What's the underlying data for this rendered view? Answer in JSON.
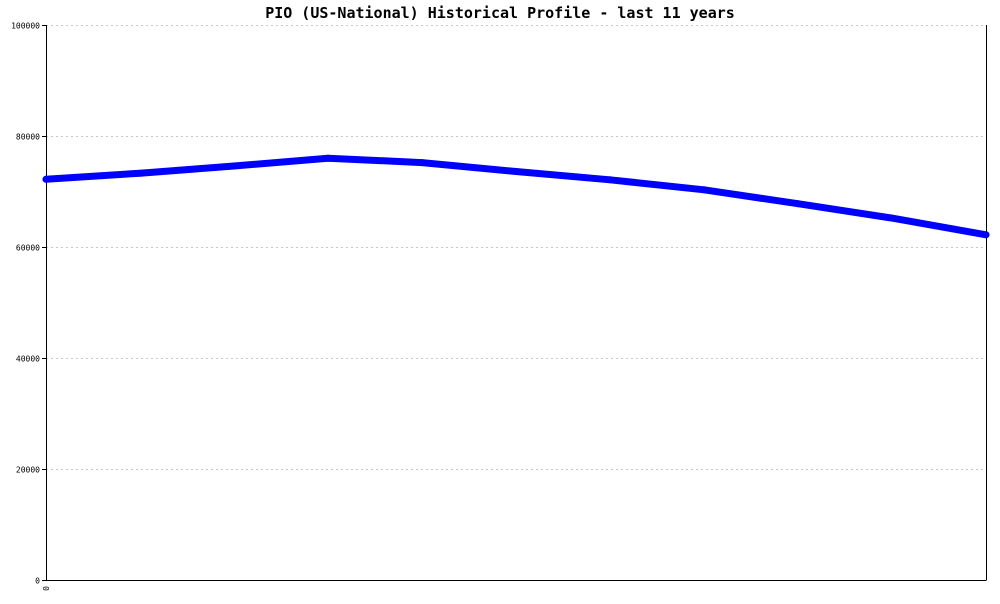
{
  "chart_data": {
    "type": "line",
    "title": "PIO (US-National) Historical Profile - last 11 years",
    "xlabel": "",
    "ylabel": "",
    "ylim": [
      0,
      100000
    ],
    "y_ticks": [
      0,
      20000,
      40000,
      60000,
      80000,
      100000
    ],
    "y_tick_labels": [
      "0",
      "20000",
      "40000",
      "60000",
      "80000",
      "100000"
    ],
    "x_ticks": [
      0
    ],
    "x_tick_labels": [
      "0"
    ],
    "xlim": [
      0,
      10
    ],
    "grid": true,
    "series": [
      {
        "color": "#0000ff",
        "x": [
          0,
          1,
          2,
          3,
          4,
          5,
          6,
          7,
          8,
          9,
          10
        ],
        "values": [
          72200,
          73300,
          74600,
          76000,
          75200,
          73600,
          72100,
          70300,
          67800,
          65200,
          62200
        ]
      }
    ],
    "colors": {
      "background": "#ffffff",
      "axis": "#000000",
      "grid": "#c8c8c8"
    }
  }
}
